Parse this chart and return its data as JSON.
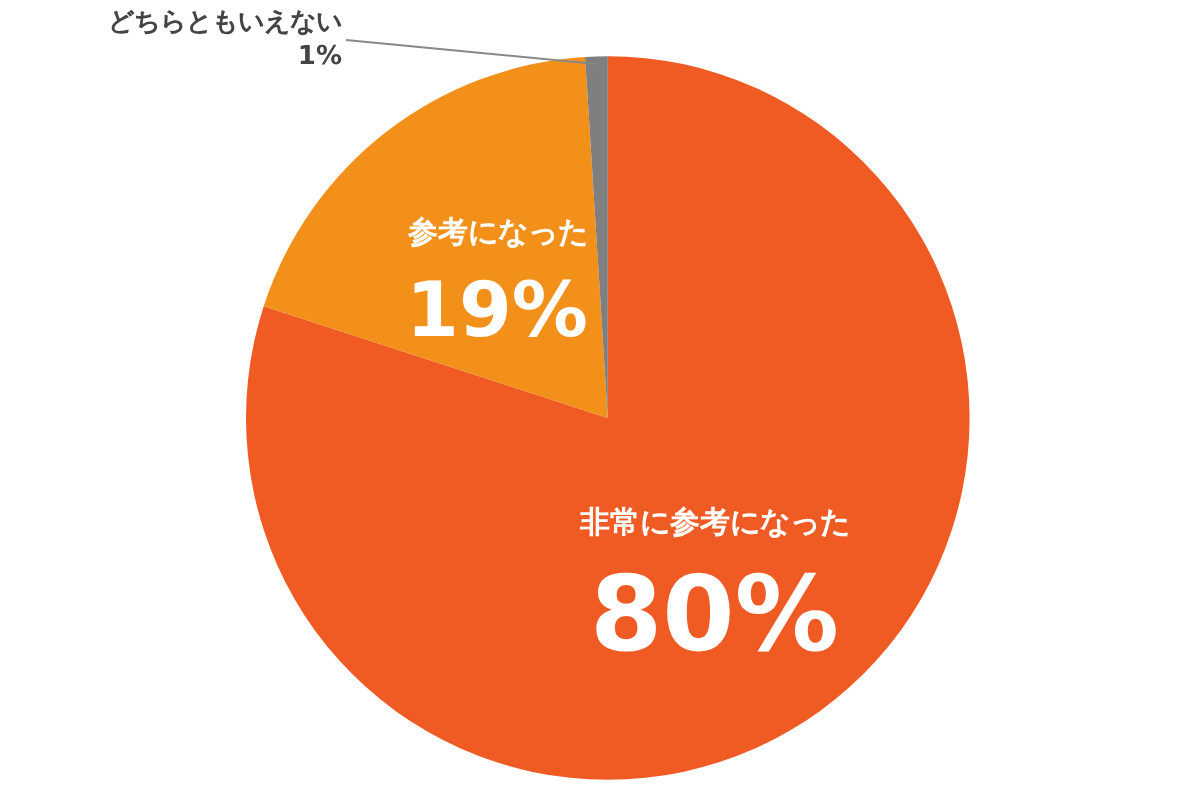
{
  "chart_data": {
    "type": "pie",
    "categories": [
      "非常に参考になった",
      "参考になった",
      "どちらともいえない"
    ],
    "values": [
      80,
      19,
      1
    ],
    "value_labels": [
      "80%",
      "19%",
      "1%"
    ],
    "colors": [
      "#f05a23",
      "#f39019",
      "#7f7f7f"
    ],
    "legend": false
  }
}
